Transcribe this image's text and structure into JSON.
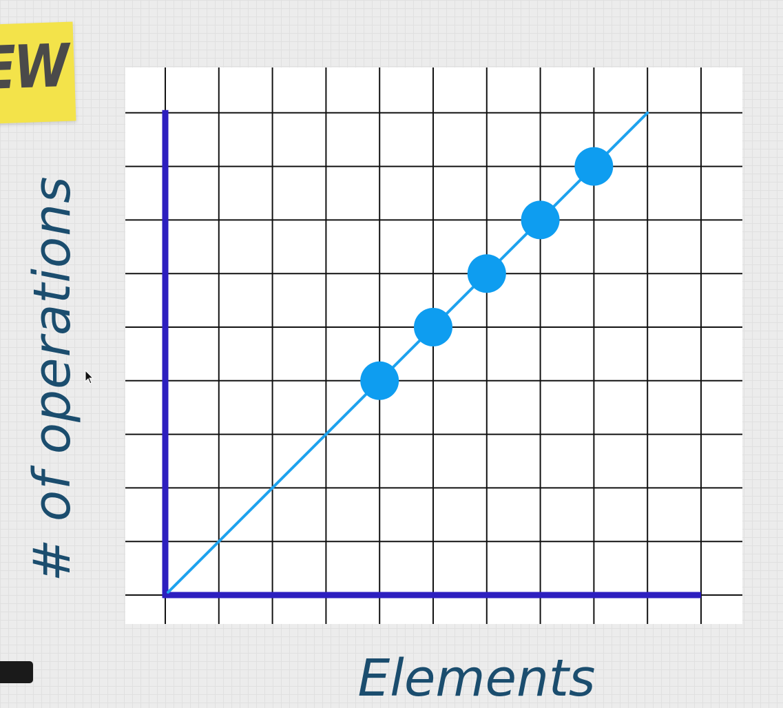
{
  "badge": {
    "text": "EW"
  },
  "chart_data": {
    "type": "line",
    "title": "",
    "xlabel": "Elements",
    "ylabel": "# of operations",
    "grid": true,
    "xlim": [
      0,
      10
    ],
    "ylim": [
      0,
      9
    ],
    "trend_line": {
      "x": [
        0,
        9
      ],
      "y": [
        0,
        9
      ]
    },
    "series": [
      {
        "x": [
          4,
          5,
          6,
          7,
          8
        ],
        "y": [
          4,
          5,
          6,
          7,
          8
        ]
      }
    ]
  },
  "colors": {
    "axis": "#2d1fbf",
    "grid": "#111111",
    "line": "#1ea2ee",
    "points": "#0e9df0",
    "label": "#1b4d6e",
    "badge": "#f3e34a"
  },
  "icons": {
    "cursor": "mouse-pointer-icon"
  }
}
